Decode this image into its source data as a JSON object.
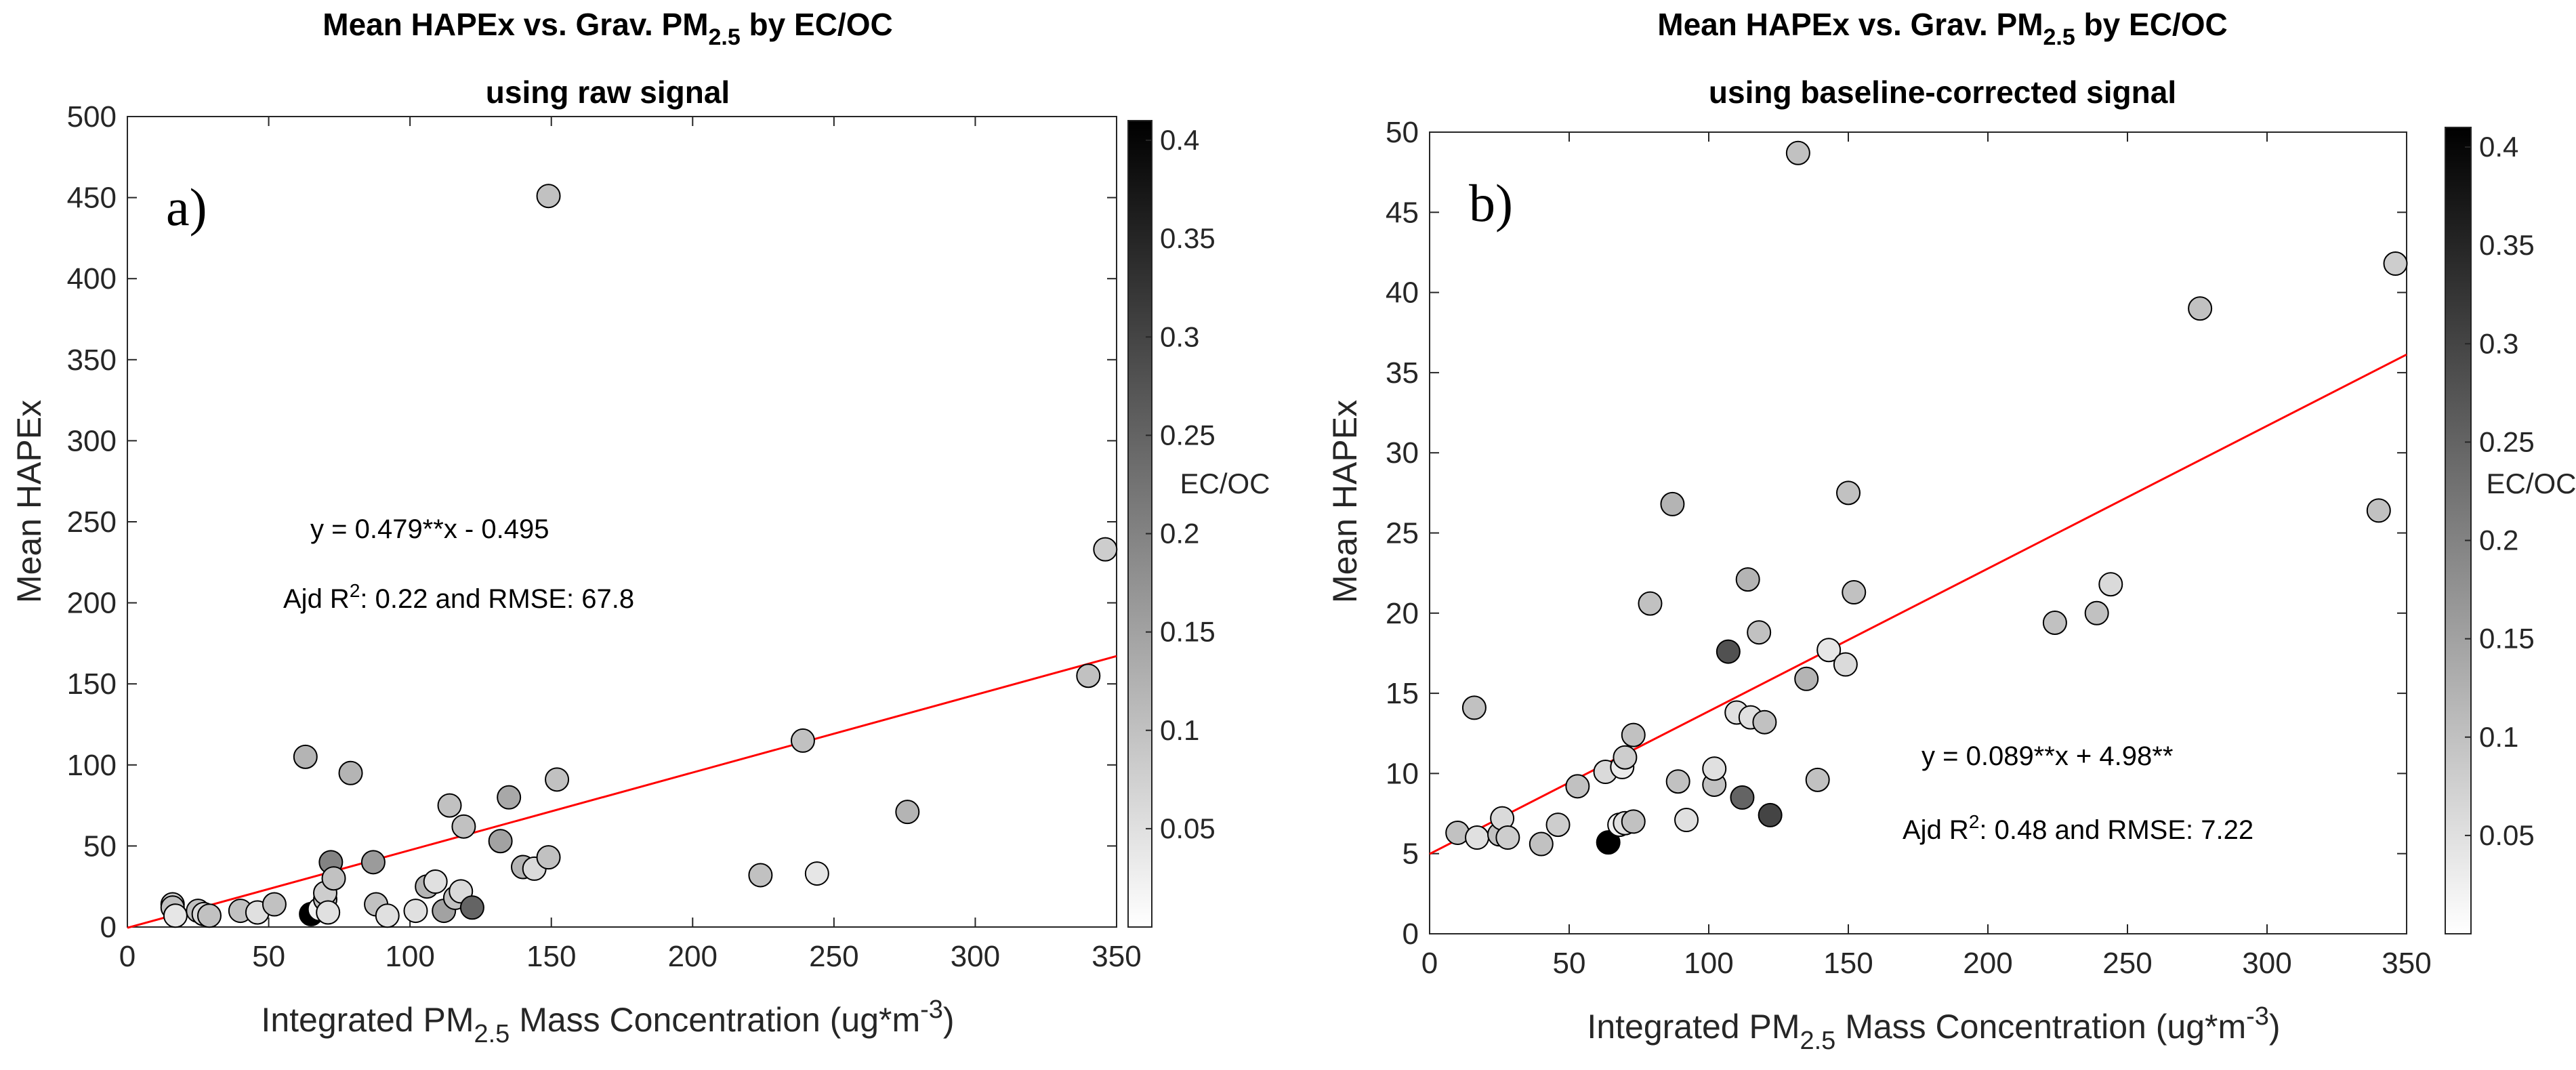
{
  "chart_data": [
    {
      "type": "scatter",
      "panel_letter": "a)",
      "title_line1_pre": "Mean HAPEx vs. Grav. PM",
      "title_line1_sub": "2.5",
      "title_line1_post": " by EC/OC",
      "title_line2": "using raw signal",
      "xlabel_pre": "Integrated PM",
      "xlabel_sub": "2.5",
      "xlabel_mid": " Mass Concentration (ug*m",
      "xlabel_sup": "-3",
      "xlabel_post": ")",
      "ylabel": "Mean HAPEx",
      "xlim": [
        0,
        350
      ],
      "ylim": [
        0,
        500
      ],
      "xticks": [
        "0",
        "50",
        "100",
        "150",
        "200",
        "250",
        "300",
        "350"
      ],
      "yticks": [
        "0",
        "50",
        "100",
        "150",
        "200",
        "250",
        "300",
        "350",
        "400",
        "450",
        "500"
      ],
      "fit_line": {
        "slope": 0.479,
        "intercept": -0.495,
        "color": "#ff0000"
      },
      "equation": "y = 0.479**x - 0.495",
      "stats_pre": "Ajd R",
      "stats_sup": "2",
      "stats_post": ": 0.22 and RMSE: 67.8",
      "colorbar_label": "EC/OC",
      "colorbar_range": [
        0,
        0.41
      ],
      "colorbar_ticks": [
        "0.05",
        "0.1",
        "0.15",
        "0.2",
        "0.25",
        "0.3",
        "0.35",
        "0.4"
      ],
      "points": [
        {
          "x": 16,
          "y": 14,
          "c": 0.08
        },
        {
          "x": 16,
          "y": 12,
          "c": 0.1
        },
        {
          "x": 17,
          "y": 7,
          "c": 0.04
        },
        {
          "x": 25,
          "y": 10,
          "c": 0.1
        },
        {
          "x": 27,
          "y": 8,
          "c": 0.06
        },
        {
          "x": 29,
          "y": 7,
          "c": 0.1
        },
        {
          "x": 40,
          "y": 10,
          "c": 0.1
        },
        {
          "x": 46,
          "y": 9,
          "c": 0.05
        },
        {
          "x": 52,
          "y": 14,
          "c": 0.1
        },
        {
          "x": 63,
          "y": 105,
          "c": 0.12
        },
        {
          "x": 65,
          "y": 8,
          "c": 0.41
        },
        {
          "x": 68,
          "y": 11,
          "c": 0.02
        },
        {
          "x": 70,
          "y": 17,
          "c": 0.1
        },
        {
          "x": 70,
          "y": 21,
          "c": 0.08
        },
        {
          "x": 71,
          "y": 9,
          "c": 0.05
        },
        {
          "x": 72,
          "y": 40,
          "c": 0.2
        },
        {
          "x": 73,
          "y": 30,
          "c": 0.1
        },
        {
          "x": 79,
          "y": 95,
          "c": 0.12
        },
        {
          "x": 87,
          "y": 40,
          "c": 0.16
        },
        {
          "x": 88,
          "y": 14,
          "c": 0.1
        },
        {
          "x": 92,
          "y": 7,
          "c": 0.05
        },
        {
          "x": 102,
          "y": 10,
          "c": 0.05
        },
        {
          "x": 106,
          "y": 25,
          "c": 0.12
        },
        {
          "x": 109,
          "y": 28,
          "c": 0.05
        },
        {
          "x": 112,
          "y": 10,
          "c": 0.15
        },
        {
          "x": 114,
          "y": 75,
          "c": 0.1
        },
        {
          "x": 116,
          "y": 18,
          "c": 0.1
        },
        {
          "x": 118,
          "y": 22,
          "c": 0.06
        },
        {
          "x": 119,
          "y": 62,
          "c": 0.1
        },
        {
          "x": 122,
          "y": 12,
          "c": 0.25
        },
        {
          "x": 132,
          "y": 53,
          "c": 0.15
        },
        {
          "x": 135,
          "y": 80,
          "c": 0.14
        },
        {
          "x": 140,
          "y": 37,
          "c": 0.12
        },
        {
          "x": 144,
          "y": 36,
          "c": 0.06
        },
        {
          "x": 149,
          "y": 451,
          "c": 0.1
        },
        {
          "x": 149,
          "y": 43,
          "c": 0.1
        },
        {
          "x": 152,
          "y": 91,
          "c": 0.1
        },
        {
          "x": 224,
          "y": 32,
          "c": 0.1
        },
        {
          "x": 239,
          "y": 115,
          "c": 0.1
        },
        {
          "x": 244,
          "y": 33,
          "c": 0.04
        },
        {
          "x": 276,
          "y": 71,
          "c": 0.12
        },
        {
          "x": 340,
          "y": 155,
          "c": 0.1
        },
        {
          "x": 346,
          "y": 233,
          "c": 0.08
        }
      ]
    },
    {
      "type": "scatter",
      "panel_letter": "b)",
      "title_line1_pre": "Mean HAPEx vs. Grav. PM",
      "title_line1_sub": "2.5",
      "title_line1_post": " by EC/OC",
      "title_line2": "using baseline-corrected signal",
      "xlabel_pre": "Integrated PM",
      "xlabel_sub": "2.5",
      "xlabel_mid": " Mass Concentration (ug*m",
      "xlabel_sup": "-3",
      "xlabel_post": ")",
      "ylabel": "Mean HAPEx",
      "xlim": [
        0,
        350
      ],
      "ylim": [
        0,
        50
      ],
      "xticks": [
        "0",
        "50",
        "100",
        "150",
        "200",
        "250",
        "300",
        "350"
      ],
      "yticks": [
        "0",
        "5",
        "10",
        "15",
        "20",
        "25",
        "30",
        "35",
        "40",
        "45",
        "50"
      ],
      "fit_line": {
        "slope": 0.089,
        "intercept": 4.98,
        "color": "#ff0000"
      },
      "equation": "y = 0.089**x + 4.98**",
      "stats_pre": "Ajd R",
      "stats_sup": "2",
      "stats_post": ": 0.48 and RMSE: 7.22",
      "colorbar_label": "EC/OC",
      "colorbar_range": [
        0,
        0.41
      ],
      "colorbar_ticks": [
        "0.05",
        "0.1",
        "0.15",
        "0.2",
        "0.25",
        "0.3",
        "0.35",
        "0.4"
      ],
      "points": [
        {
          "x": 10,
          "y": 6.3,
          "c": 0.1
        },
        {
          "x": 16,
          "y": 14.1,
          "c": 0.1
        },
        {
          "x": 17,
          "y": 6.0,
          "c": 0.05
        },
        {
          "x": 25,
          "y": 6.2,
          "c": 0.1
        },
        {
          "x": 26,
          "y": 7.2,
          "c": 0.06
        },
        {
          "x": 28,
          "y": 6.0,
          "c": 0.08
        },
        {
          "x": 40,
          "y": 5.6,
          "c": 0.1
        },
        {
          "x": 46,
          "y": 6.8,
          "c": 0.08
        },
        {
          "x": 53,
          "y": 9.2,
          "c": 0.1
        },
        {
          "x": 63,
          "y": 10.1,
          "c": 0.06
        },
        {
          "x": 64,
          "y": 5.7,
          "c": 0.41
        },
        {
          "x": 68,
          "y": 6.8,
          "c": 0.02
        },
        {
          "x": 69,
          "y": 10.4,
          "c": 0.03
        },
        {
          "x": 70,
          "y": 11.0,
          "c": 0.08
        },
        {
          "x": 70,
          "y": 6.9,
          "c": 0.05
        },
        {
          "x": 73,
          "y": 7.0,
          "c": 0.1
        },
        {
          "x": 73,
          "y": 12.4,
          "c": 0.1
        },
        {
          "x": 79,
          "y": 20.6,
          "c": 0.1
        },
        {
          "x": 87,
          "y": 26.8,
          "c": 0.12
        },
        {
          "x": 89,
          "y": 9.5,
          "c": 0.1
        },
        {
          "x": 92,
          "y": 7.1,
          "c": 0.05
        },
        {
          "x": 102,
          "y": 9.3,
          "c": 0.1
        },
        {
          "x": 102,
          "y": 10.3,
          "c": 0.05
        },
        {
          "x": 107,
          "y": 17.6,
          "c": 0.28
        },
        {
          "x": 110,
          "y": 13.8,
          "c": 0.05
        },
        {
          "x": 112,
          "y": 8.5,
          "c": 0.25
        },
        {
          "x": 114,
          "y": 22.1,
          "c": 0.12
        },
        {
          "x": 115,
          "y": 13.5,
          "c": 0.05
        },
        {
          "x": 118,
          "y": 18.8,
          "c": 0.1
        },
        {
          "x": 120,
          "y": 13.2,
          "c": 0.1
        },
        {
          "x": 122,
          "y": 7.4,
          "c": 0.3
        },
        {
          "x": 132,
          "y": 48.7,
          "c": 0.1
        },
        {
          "x": 135,
          "y": 15.9,
          "c": 0.12
        },
        {
          "x": 139,
          "y": 9.6,
          "c": 0.1
        },
        {
          "x": 143,
          "y": 17.7,
          "c": 0.04
        },
        {
          "x": 149,
          "y": 16.8,
          "c": 0.06
        },
        {
          "x": 150,
          "y": 27.5,
          "c": 0.1
        },
        {
          "x": 152,
          "y": 21.3,
          "c": 0.1
        },
        {
          "x": 224,
          "y": 19.4,
          "c": 0.1
        },
        {
          "x": 239,
          "y": 20.0,
          "c": 0.1
        },
        {
          "x": 244,
          "y": 21.8,
          "c": 0.06
        },
        {
          "x": 276,
          "y": 39.0,
          "c": 0.1
        },
        {
          "x": 340,
          "y": 26.4,
          "c": 0.1
        },
        {
          "x": 346,
          "y": 41.8,
          "c": 0.08
        }
      ]
    }
  ]
}
